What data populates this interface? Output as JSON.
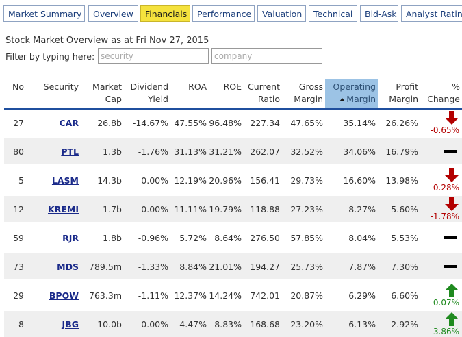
{
  "tabs": [
    {
      "label": "Market Summary",
      "active": false
    },
    {
      "label": "Overview",
      "active": false
    },
    {
      "label": "Financials",
      "active": true
    },
    {
      "label": "Performance",
      "active": false
    },
    {
      "label": "Valuation",
      "active": false
    },
    {
      "label": "Technical",
      "active": false
    },
    {
      "label": "Bid-Ask",
      "active": false
    },
    {
      "label": "Analyst Ratings",
      "active": false
    }
  ],
  "page_title": "Stock Market Overview as at Fri Nov 27, 2015",
  "filter": {
    "label": "Filter by typing here:",
    "security_placeholder": "security",
    "company_placeholder": "company"
  },
  "columns": {
    "no": "No",
    "security": "Security",
    "market_cap": [
      "Market",
      "Cap"
    ],
    "dividend_yield": [
      "Dividend",
      "Yield"
    ],
    "roa": "ROA",
    "roe": "ROE",
    "current_ratio": [
      "Current",
      "Ratio"
    ],
    "gross_margin": [
      "Gross",
      "Margin"
    ],
    "operating_margin": [
      "Operating",
      "Margin"
    ],
    "profit_margin": [
      "Profit",
      "Margin"
    ],
    "pct_change": [
      "%",
      "Change"
    ]
  },
  "sorted_column": "operating_margin",
  "colors": {
    "tab_active": "#f5e23d",
    "header_rule": "#1f4f9e",
    "sorted_header": "#9cc3e5",
    "down": "#b30000",
    "up": "#1f8a1f"
  },
  "rows": [
    {
      "no": "27",
      "security": "CAR",
      "market_cap": "26.8b",
      "dividend_yield": "-14.67%",
      "roa": "47.55%",
      "roe": "96.48%",
      "current_ratio": "227.34",
      "gross_margin": "47.65%",
      "operating_margin": "35.14%",
      "profit_margin": "26.26%",
      "trend": "down",
      "change": "-0.65%"
    },
    {
      "no": "80",
      "security": "PTL",
      "market_cap": "1.3b",
      "dividend_yield": "-1.76%",
      "roa": "31.13%",
      "roe": "31.21%",
      "current_ratio": "262.07",
      "gross_margin": "32.52%",
      "operating_margin": "34.06%",
      "profit_margin": "16.79%",
      "trend": "flat",
      "change": ""
    },
    {
      "no": "5",
      "security": "LASM",
      "market_cap": "14.3b",
      "dividend_yield": "0.00%",
      "roa": "12.19%",
      "roe": "20.96%",
      "current_ratio": "156.41",
      "gross_margin": "29.73%",
      "operating_margin": "16.60%",
      "profit_margin": "13.98%",
      "trend": "down",
      "change": "-0.28%"
    },
    {
      "no": "12",
      "security": "KREMI",
      "market_cap": "1.7b",
      "dividend_yield": "0.00%",
      "roa": "11.11%",
      "roe": "19.79%",
      "current_ratio": "118.88",
      "gross_margin": "27.23%",
      "operating_margin": "8.27%",
      "profit_margin": "5.60%",
      "trend": "down",
      "change": "-1.78%"
    },
    {
      "no": "59",
      "security": "RJR",
      "market_cap": "1.8b",
      "dividend_yield": "-0.96%",
      "roa": "5.72%",
      "roe": "8.64%",
      "current_ratio": "276.50",
      "gross_margin": "57.85%",
      "operating_margin": "8.04%",
      "profit_margin": "5.53%",
      "trend": "flat",
      "change": ""
    },
    {
      "no": "73",
      "security": "MDS",
      "market_cap": "789.5m",
      "dividend_yield": "-1.33%",
      "roa": "8.84%",
      "roe": "21.01%",
      "current_ratio": "194.27",
      "gross_margin": "25.73%",
      "operating_margin": "7.87%",
      "profit_margin": "7.30%",
      "trend": "flat",
      "change": ""
    },
    {
      "no": "29",
      "security": "BPOW",
      "market_cap": "763.3m",
      "dividend_yield": "-1.11%",
      "roa": "12.37%",
      "roe": "14.24%",
      "current_ratio": "742.01",
      "gross_margin": "20.87%",
      "operating_margin": "6.29%",
      "profit_margin": "6.60%",
      "trend": "up",
      "change": "0.07%"
    },
    {
      "no": "8",
      "security": "JBG",
      "market_cap": "10.0b",
      "dividend_yield": "0.00%",
      "roa": "4.47%",
      "roe": "8.83%",
      "current_ratio": "168.68",
      "gross_margin": "23.20%",
      "operating_margin": "6.13%",
      "profit_margin": "2.92%",
      "trend": "up",
      "change": "3.86%"
    }
  ]
}
